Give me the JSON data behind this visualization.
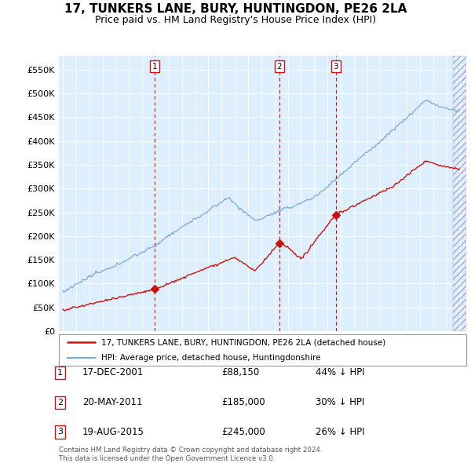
{
  "title": "17, TUNKERS LANE, BURY, HUNTINGDON, PE26 2LA",
  "subtitle": "Price paid vs. HM Land Registry's House Price Index (HPI)",
  "title_fontsize": 11,
  "subtitle_fontsize": 9,
  "ylabel_ticks": [
    "£0",
    "£50K",
    "£100K",
    "£150K",
    "£200K",
    "£250K",
    "£300K",
    "£350K",
    "£400K",
    "£450K",
    "£500K",
    "£550K"
  ],
  "ytick_values": [
    0,
    50000,
    100000,
    150000,
    200000,
    250000,
    300000,
    350000,
    400000,
    450000,
    500000,
    550000
  ],
  "ylim": [
    0,
    580000
  ],
  "hpi_color": "#7aaadd",
  "price_color": "#cc1111",
  "vline_color": "#cc1111",
  "box_color": "#cc1111",
  "purchases": [
    {
      "label": "1",
      "date_num": 2001.958,
      "price": 88150,
      "x_label": "17-DEC-2001",
      "price_label": "£88,150",
      "hpi_label": "44% ↓ HPI"
    },
    {
      "label": "2",
      "date_num": 2011.375,
      "price": 185000,
      "x_label": "20-MAY-2011",
      "price_label": "£185,000",
      "hpi_label": "30% ↓ HPI"
    },
    {
      "label": "3",
      "date_num": 2015.633,
      "price": 245000,
      "x_label": "19-AUG-2015",
      "price_label": "£245,000",
      "hpi_label": "26% ↓ HPI"
    }
  ],
  "legend_line1": "17, TUNKERS LANE, BURY, HUNTINGDON, PE26 2LA (detached house)",
  "legend_line2": "HPI: Average price, detached house, Huntingdonshire",
  "footnote": "Contains HM Land Registry data © Crown copyright and database right 2024.\nThis data is licensed under the Open Government Licence v3.0.",
  "plot_bg_color": "#ddeeff",
  "grid_color": "#ffffff",
  "fig_bg": "#ffffff"
}
